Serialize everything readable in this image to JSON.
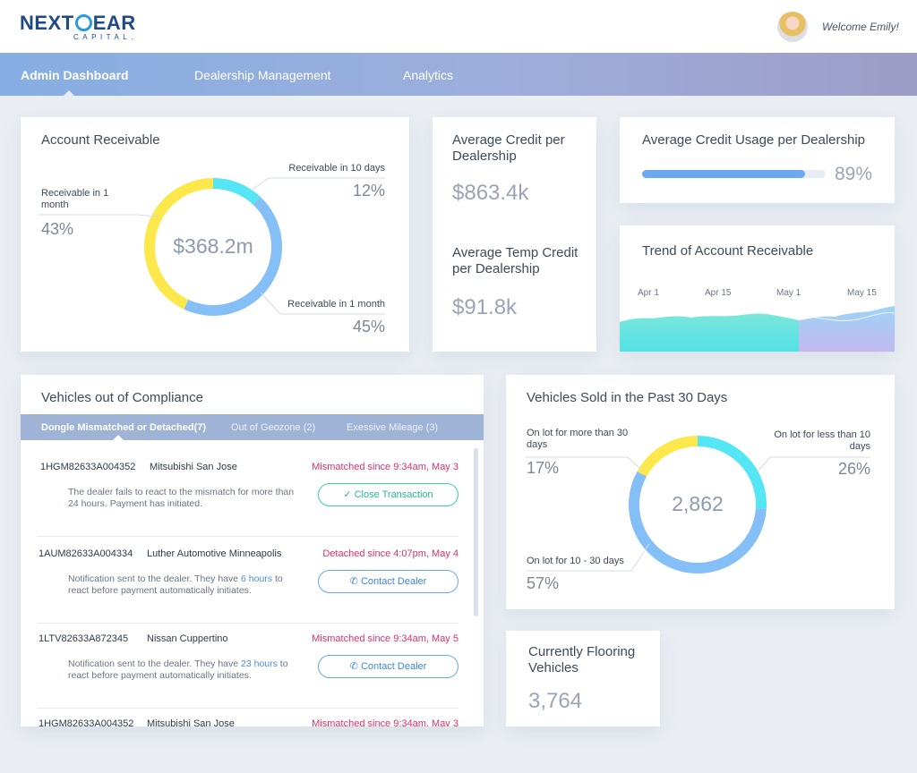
{
  "brand": {
    "logo_text_a": "NEXT",
    "logo_text_b": "EAR",
    "logo_sub": "CAPITAL."
  },
  "header": {
    "welcome": "Welcome Emily!"
  },
  "nav": {
    "items": [
      {
        "label": "Admin Dashboard"
      },
      {
        "label": "Dealership Management"
      },
      {
        "label": "Analytics"
      }
    ]
  },
  "account_receivable": {
    "title": "Account Receivable",
    "total": "$368.2m",
    "segments": [
      {
        "label": "Receivable in 10 days",
        "pct": "12%",
        "value": 12,
        "color": "#55e6f5"
      },
      {
        "label": "Receivable in 1 month",
        "pct": "45%",
        "value": 45,
        "color": "#85bff7"
      },
      {
        "label": "Receivable in 1 month",
        "pct": "43%",
        "value": 43,
        "color": "#fde84b"
      }
    ]
  },
  "avg_credit": {
    "title": "Average Credit per Dealership",
    "value": "$863.4k"
  },
  "avg_temp_credit": {
    "title": "Average Temp Credit per Dealership",
    "value": "$91.8k"
  },
  "credit_usage": {
    "title": "Average Credit Usage per Dealership",
    "pct": "89%",
    "value": 89
  },
  "trend": {
    "title": "Trend of Account Receivable",
    "x_labels": [
      "Apr 1",
      "Apr 15",
      "May 1",
      "May 15"
    ]
  },
  "compliance": {
    "title": "Vehicles out of Compliance",
    "tabs": [
      {
        "label": "Dongle Mismatched or Detached(7)"
      },
      {
        "label": "Out of Geozone (2)"
      },
      {
        "label": "Exessive Mileage (3)"
      }
    ],
    "rows": [
      {
        "vin": "1HGM82633A004352",
        "dealer": "Mitsubishi San Jose",
        "status": "Mismatched since 9:34am, May 3",
        "desc": "The dealer fails to react to the mismatch for more than 24 hours. Payment has initiated.",
        "button": "Close Transaction"
      },
      {
        "vin": "1AUM82633A004334",
        "dealer": "Luther Automotive Minneapolis",
        "status": "Detached since 4:07pm, May 4",
        "desc_a": "Notification sent to the dealer. They have ",
        "desc_hl": "6 hours",
        "desc_b": " to react before payment automatically initiates.",
        "button": "Contact Dealer"
      },
      {
        "vin": "1LTV82633A872345",
        "dealer": "Nissan Cuppertino",
        "status": "Mismatched since 9:34am, May 5",
        "desc_a": "Notification sent to the dealer. They have ",
        "desc_hl": "23 hours",
        "desc_b": " to react before payment automatically initiates.",
        "button": "Contact Dealer"
      },
      {
        "vin": "1HGM82633A004352",
        "dealer": "Mitsubishi San Jose",
        "status": "Mismatched since 9:34am, May 3"
      }
    ]
  },
  "vehicles_sold": {
    "title": "Vehicles Sold in the Past 30 Days",
    "total": "2,862",
    "segments": [
      {
        "label": "On lot for less than 10 days",
        "pct": "26%",
        "value": 26,
        "color": "#55e6f5"
      },
      {
        "label": "On lot for 10 - 30 days",
        "pct": "57%",
        "value": 57,
        "color": "#85bff7"
      },
      {
        "label": "On lot for more than 30 days",
        "pct": "17%",
        "value": 17,
        "color": "#fde84b"
      }
    ]
  },
  "flooring": {
    "title": "Currently Flooring Vehicles",
    "value": "3,764"
  }
}
